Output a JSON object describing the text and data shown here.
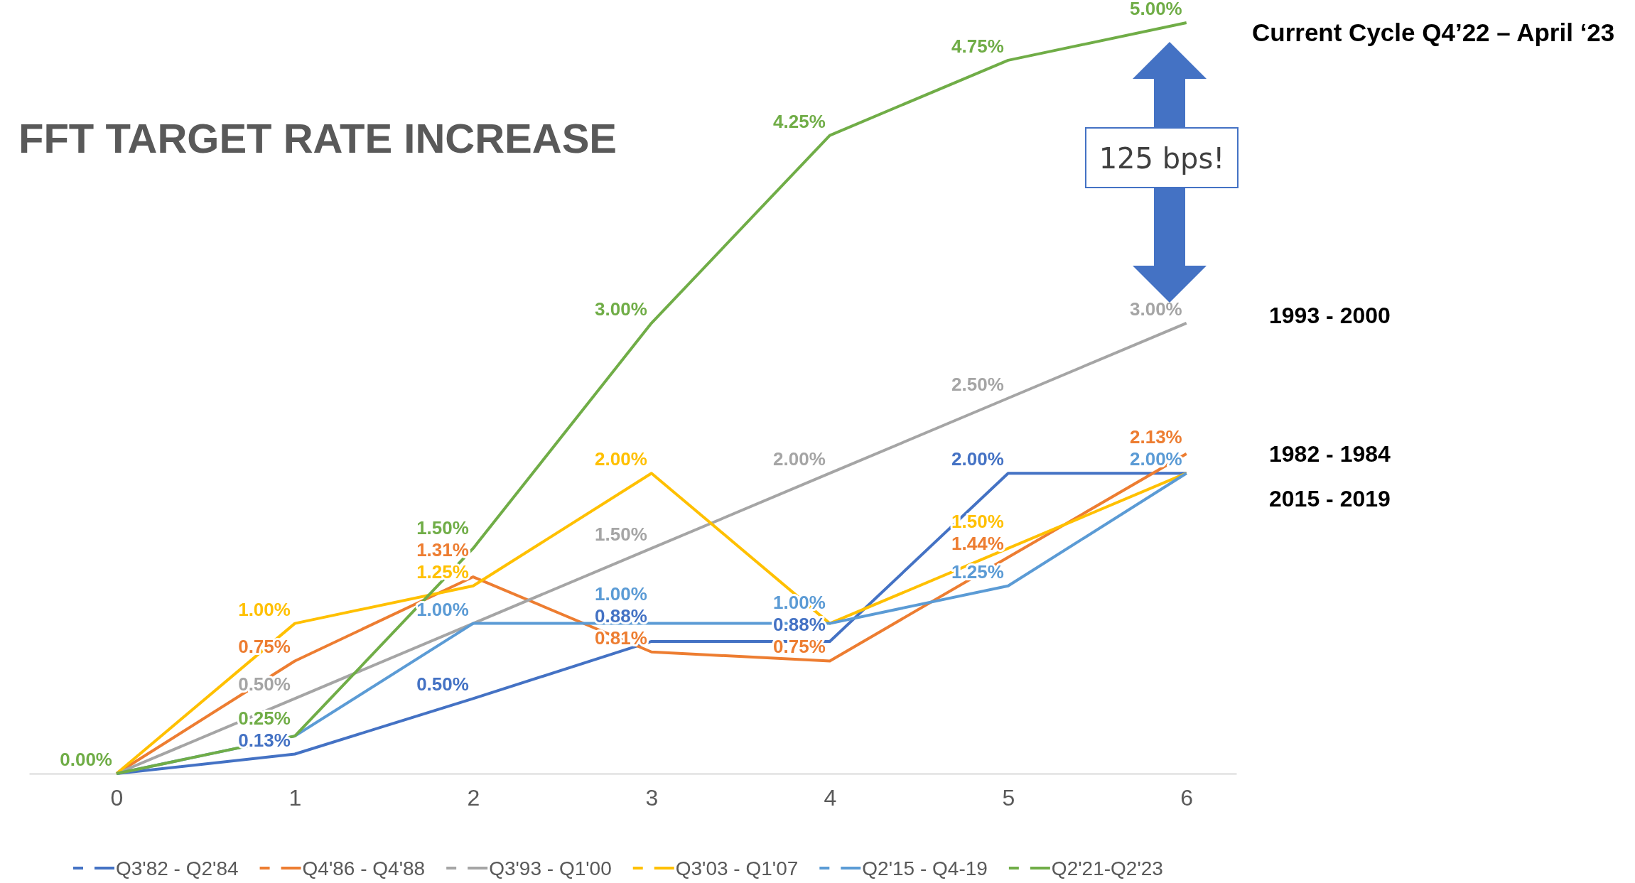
{
  "chart_data": {
    "type": "line",
    "title": "FFT TARGET RATE INCREASE",
    "x": [
      0,
      1,
      2,
      3,
      4,
      5,
      6
    ],
    "xlim": [
      -0.49,
      6.28
    ],
    "xticks": [
      0,
      1,
      2,
      3,
      4,
      5,
      6
    ],
    "tick_labels": "x",
    "series": [
      {
        "name": "Q3'82 - Q2'84",
        "color": "#4472c4",
        "values": [
          0,
          0.13,
          0.5,
          0.88,
          0.88,
          2.0,
          2.0
        ],
        "value_labels": [
          null,
          "0.13%",
          "0.50%",
          "0.88%",
          "0.88%",
          "2.00%",
          null
        ]
      },
      {
        "name": "Q4'86 - Q4'88",
        "color": "#ed7d31",
        "values": [
          0,
          0.75,
          1.31,
          0.81,
          0.75,
          1.44,
          2.13
        ],
        "value_labels": [
          null,
          "0.75%",
          "1.31%",
          "0.81%",
          "0.75%",
          "1.44%",
          "2.13%"
        ]
      },
      {
        "name": "Q3'93 - Q1'00",
        "color": "#a5a5a5",
        "values": [
          0,
          0.5,
          1.0,
          1.5,
          2.0,
          2.5,
          3.0
        ],
        "value_labels": [
          null,
          "0.50%",
          null,
          "1.50%",
          "2.00%",
          "2.50%",
          "3.00%"
        ]
      },
      {
        "name": "Q3'03 - Q1'07",
        "color": "#ffc000",
        "values": [
          0,
          1.0,
          1.25,
          2.0,
          1.0,
          1.5,
          2.0
        ],
        "value_labels": [
          null,
          "1.00%",
          "1.25%",
          "2.00%",
          null,
          "1.50%",
          null
        ]
      },
      {
        "name": "Q2'15 - Q4-19",
        "color": "#5b9bd5",
        "values": [
          0,
          0.25,
          1.0,
          1.0,
          1.0,
          1.25,
          2.0
        ],
        "value_labels": [
          null,
          null,
          "1.00%",
          "1.00%",
          "1.00%",
          "1.25%",
          "2.00%"
        ]
      },
      {
        "name": "Q2'21-Q2'23",
        "color": "#70ad47",
        "values": [
          0,
          0.25,
          1.5,
          3.0,
          4.25,
          4.75,
          5.0
        ],
        "value_labels": [
          "0.00%",
          "0.25%",
          "1.50%",
          "3.00%",
          "4.25%",
          "4.75%",
          "5.00%"
        ]
      }
    ],
    "legend": "bottom",
    "marker": "none",
    "line_style": "solid",
    "annotations": [
      "125 bps!",
      "Current Cycle Q4’22 – April ‘23",
      "1993 - 2000",
      "1982 - 1984",
      "2015 - 2019"
    ]
  }
}
